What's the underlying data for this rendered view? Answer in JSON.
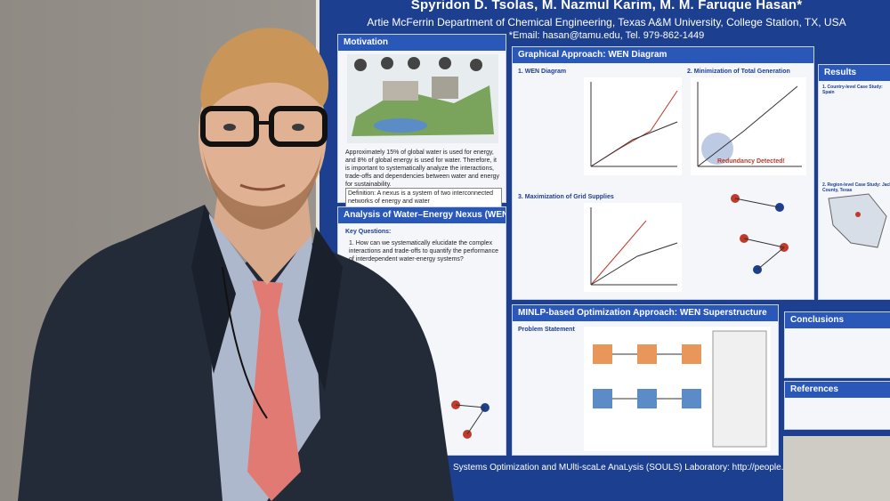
{
  "poster": {
    "authors": "Spyridon D. Tsolas, M. Nazmul Karim, M. M. Faruque Hasan*",
    "affiliation": "Artie McFerrin Department of Chemical Engineering, Texas A&M University, College Station, TX, USA",
    "email": "*Email: hasan@tamu.edu, Tel. 979-862-1449",
    "sections": {
      "motivation": "Motivation",
      "graphical": "Graphical Approach: WEN Diagram",
      "results": "Results",
      "analysis": "Analysis of Water–Energy Nexus (WEN)",
      "minlp": "MINLP-based Optimization Approach: WEN Superstructure",
      "conclusions": "Conclusions",
      "references": "References"
    },
    "motivation_text": "Approximately 15% of global water is used for energy, and 8% of global energy is used for water. Therefore, it is important to systematically analyze the interactions, trade-offs and dependencies between water and energy for sustainability.",
    "definition": "Definition: A nexus is a system of two interconnected networks of energy and water",
    "key_questions": "Key Questions:",
    "q1": "1. How can we systematically elucidate the complex interactions and trade-offs to quantify the performance of interdependent water-energy systems?",
    "sub1": "1. WEN Diagram",
    "sub2": "2. Minimization of Total Generation",
    "sub3": "3. Maximization of Grid Supplies",
    "redundancy": "Redundancy Detected!",
    "results_sub1": "1. Country-level Case Study: Spain",
    "results_sub2": "2. Region-level Case Study: Jack County, Texas",
    "problem_statement": "Problem Statement",
    "footer": "Systems Optimization and MUlti-scaLe AnaLysis (SOULS) Laboratory: http://people.tamu.edu/~hasan/"
  },
  "colors": {
    "poster_blue": "#1d3f8f",
    "header_blue": "#2a58b8",
    "tie": "#e07a73",
    "suit": "#232a38",
    "shirt": "#aeb8cc"
  }
}
